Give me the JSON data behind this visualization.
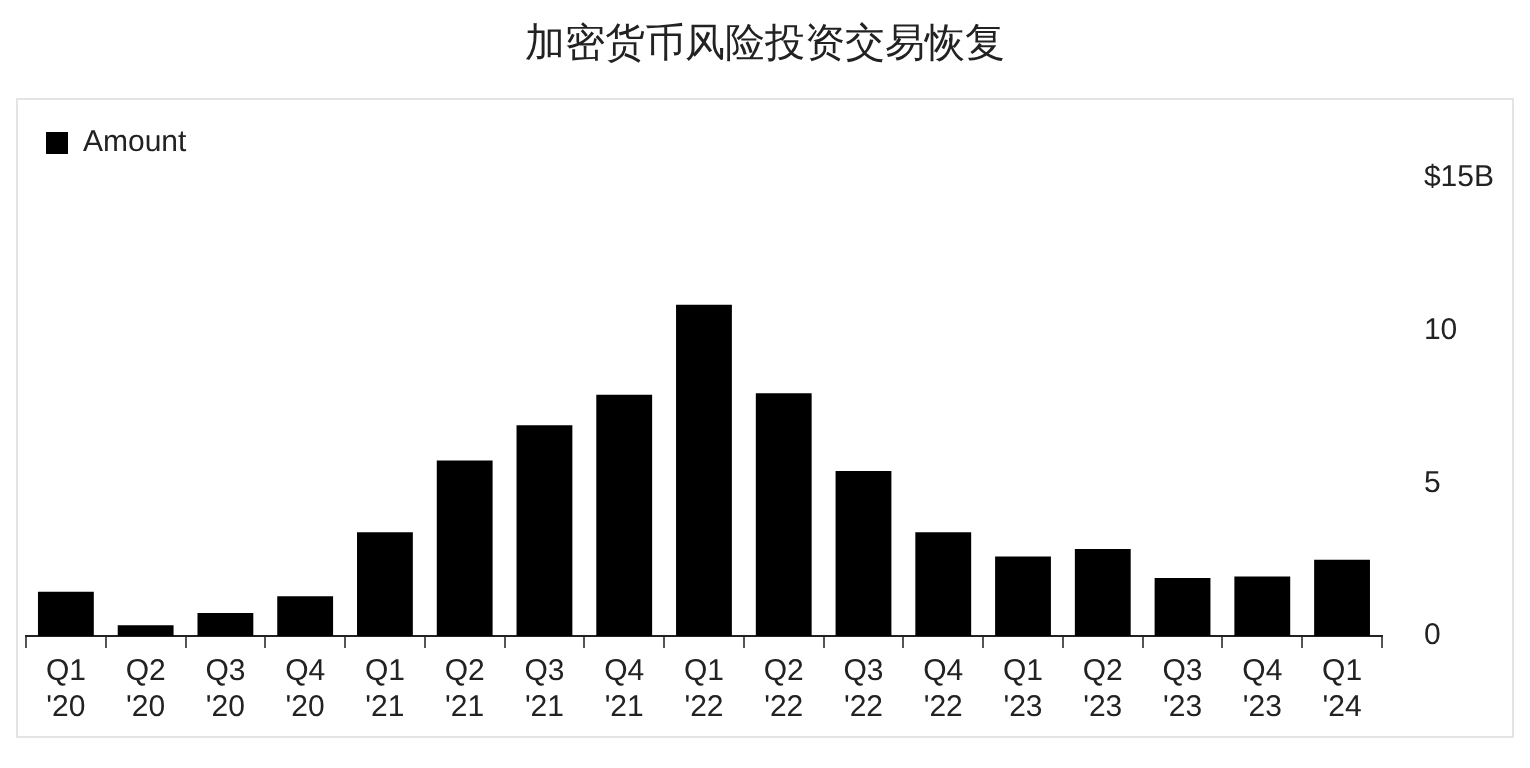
{
  "chart_data": {
    "type": "bar",
    "title": "加密货币风险投资交易恢复",
    "categories": [
      "Q1 '20",
      "Q2 '20",
      "Q3 '20",
      "Q4 '20",
      "Q1 '21",
      "Q2 '21",
      "Q3 '21",
      "Q4 '21",
      "Q1 '22",
      "Q2 '22",
      "Q3 '22",
      "Q4 '22",
      "Q1 '23",
      "Q2 '23",
      "Q3 '23",
      "Q4 '23",
      "Q1 '24"
    ],
    "series": [
      {
        "name": "Amount",
        "color": "#000000",
        "values": [
          1.45,
          0.35,
          0.75,
          1.3,
          3.4,
          5.75,
          6.9,
          7.9,
          10.85,
          7.95,
          5.4,
          3.4,
          2.6,
          2.85,
          1.9,
          1.95,
          2.5
        ]
      }
    ],
    "ylim": [
      0,
      15
    ],
    "yticks": [
      0,
      5,
      10,
      {
        "value": 15,
        "label": "$15B"
      }
    ],
    "legend": "top left"
  }
}
